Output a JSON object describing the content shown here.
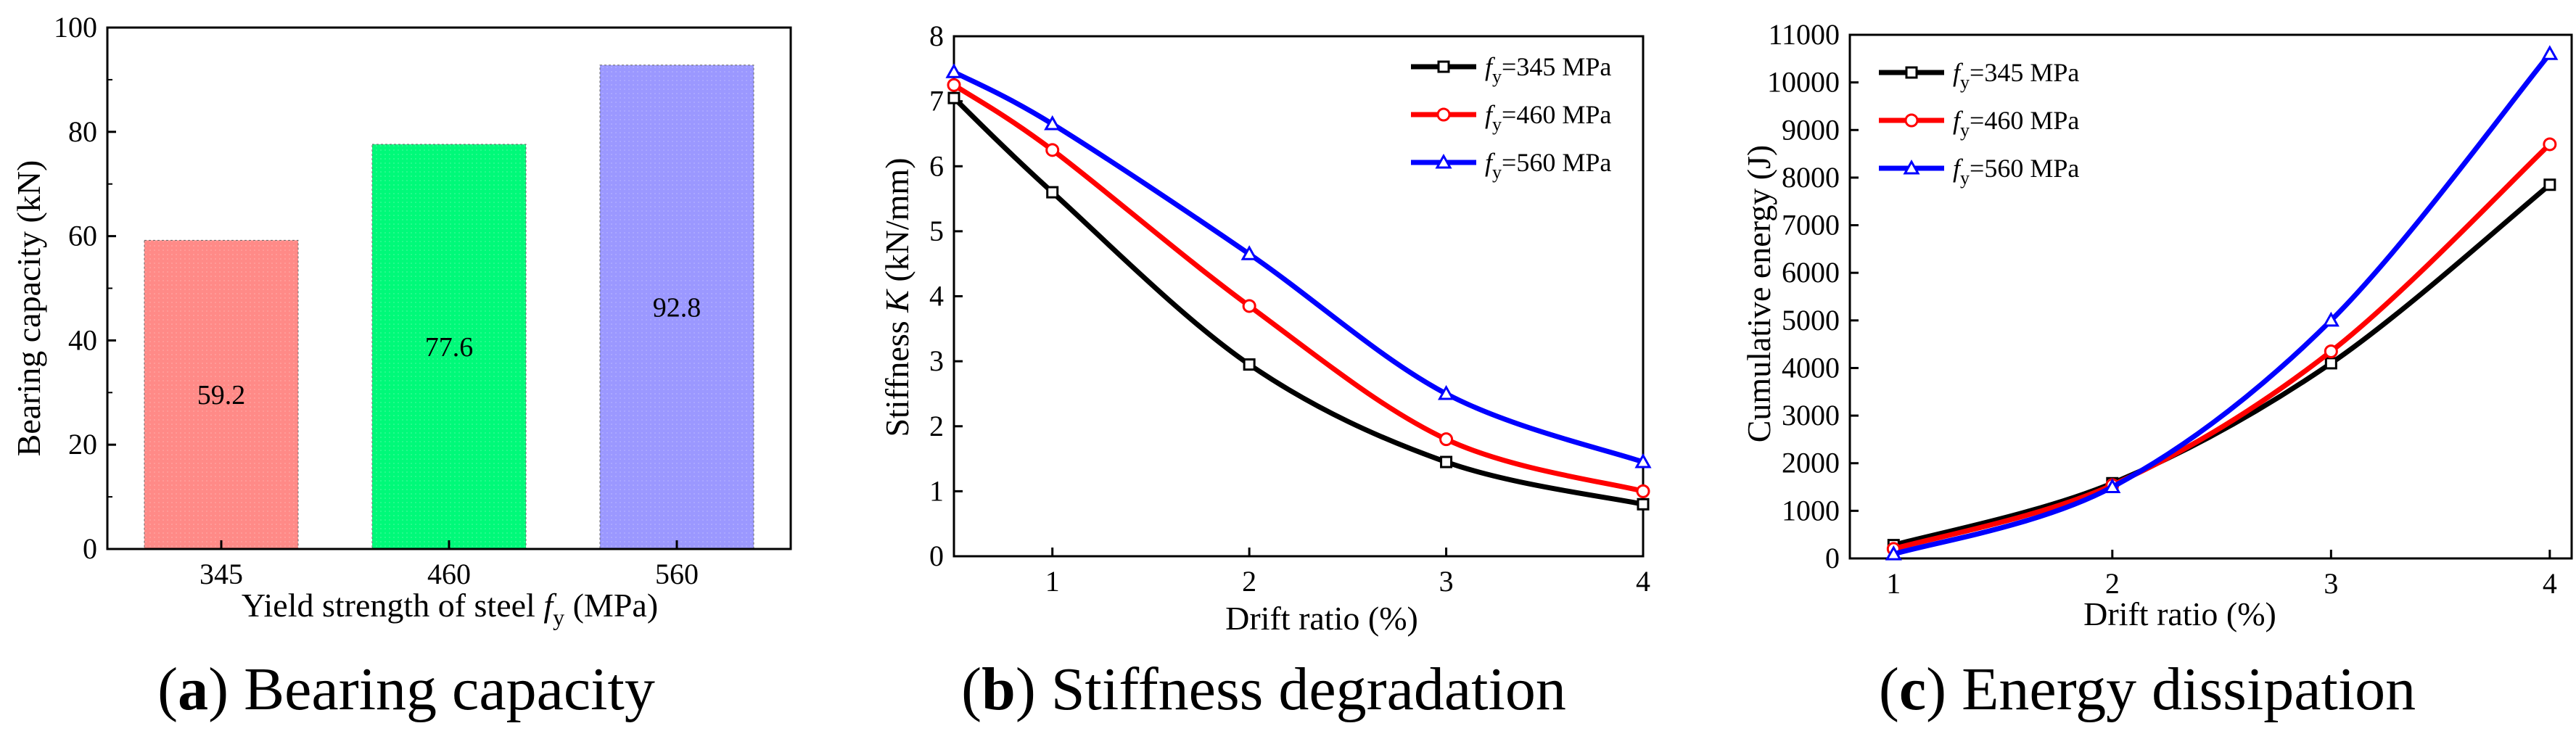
{
  "colors": {
    "bar_345": "#FF8A87",
    "bar_460": "#00F979",
    "bar_560": "#9B98FF",
    "line_345": "#000000",
    "line_460": "#FF0000",
    "line_560": "#0000FF"
  },
  "panels": {
    "a": {
      "caption_letter": "a",
      "caption_text": "Bearing capacity"
    },
    "b": {
      "caption_letter": "b",
      "caption_text": "Stiffness degradation"
    },
    "c": {
      "caption_letter": "c",
      "caption_text": "Energy dissipation"
    }
  },
  "chart_data": [
    {
      "type": "bar",
      "title": "Bearing capacity",
      "categories": [
        "345",
        "460",
        "560"
      ],
      "values": [
        59.2,
        77.6,
        92.8
      ],
      "value_labels": [
        "59.2",
        "77.6",
        "92.8"
      ],
      "xlabel_prefix": "Yield strength of steel ",
      "xlabel_var": "f",
      "xlabel_sub": "y",
      "xlabel_suffix": " (MPa)",
      "ylabel": "Bearing capacity (kN)",
      "ylim": [
        0,
        100
      ],
      "yticks": [
        "0",
        "20",
        "40",
        "60",
        "80",
        "100"
      ]
    },
    {
      "type": "line",
      "title": "Stiffness degradation",
      "xlabel": "Drift ratio (%)",
      "ylabel_prefix": "Stiffness ",
      "ylabel_var": "K",
      "ylabel_suffix": " (kN/mm)",
      "xlim": [
        0.5,
        4
      ],
      "ylim": [
        0,
        8
      ],
      "xticks": [
        "1",
        "2",
        "3",
        "4"
      ],
      "yticks": [
        "0",
        "1",
        "2",
        "3",
        "4",
        "5",
        "6",
        "7",
        "8"
      ],
      "legend_loc": "top-right",
      "x": [
        0.5,
        1,
        2,
        3,
        4
      ],
      "series": [
        {
          "name": "fy=345 MPa",
          "var": "f",
          "sub": "y",
          "rest": "=345 MPa",
          "marker": "square",
          "values": [
            7.05,
            5.6,
            2.95,
            1.45,
            0.8
          ]
        },
        {
          "name": "fy=460 MPa",
          "var": "f",
          "sub": "y",
          "rest": "=460 MPa",
          "marker": "circle",
          "values": [
            7.25,
            6.25,
            3.85,
            1.8,
            1.0
          ]
        },
        {
          "name": "fy=560 MPa",
          "var": "f",
          "sub": "y",
          "rest": "=560 MPa",
          "marker": "triangle",
          "values": [
            7.45,
            6.65,
            4.65,
            2.5,
            1.45
          ]
        }
      ]
    },
    {
      "type": "line",
      "title": "Energy dissipation",
      "xlabel": "Drift ratio (%)",
      "ylabel": "Cumulative energy (J)",
      "xlim": [
        0.8,
        4.1
      ],
      "ylim": [
        0,
        11000
      ],
      "xticks": [
        "1",
        "2",
        "3",
        "4"
      ],
      "yticks": [
        "0",
        "1000",
        "2000",
        "3000",
        "4000",
        "5000",
        "6000",
        "7000",
        "8000",
        "9000",
        "10000",
        "11000"
      ],
      "legend_loc": "top-left",
      "x": [
        1,
        2,
        3,
        4
      ],
      "series": [
        {
          "name": "fy=345 MPa",
          "var": "f",
          "sub": "y",
          "rest": "=345 MPa",
          "marker": "square",
          "values": [
            280,
            1580,
            4100,
            7850
          ]
        },
        {
          "name": "fy=460 MPa",
          "var": "f",
          "sub": "y",
          "rest": "=460 MPa",
          "marker": "circle",
          "values": [
            200,
            1540,
            4350,
            8700
          ]
        },
        {
          "name": "fy=560 MPa",
          "var": "f",
          "sub": "y",
          "rest": "=560 MPa",
          "marker": "triangle",
          "values": [
            90,
            1500,
            5000,
            10600
          ]
        }
      ]
    }
  ]
}
